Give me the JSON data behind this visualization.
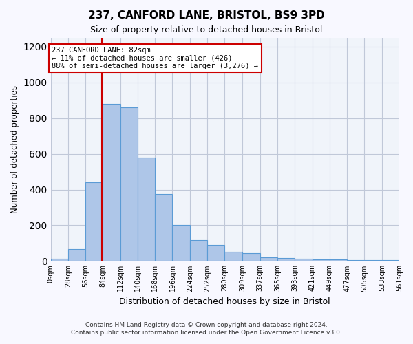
{
  "title1": "237, CANFORD LANE, BRISTOL, BS9 3PD",
  "title2": "Size of property relative to detached houses in Bristol",
  "xlabel": "Distribution of detached houses by size in Bristol",
  "ylabel": "Number of detached properties",
  "footer1": "Contains HM Land Registry data © Crown copyright and database right 2024.",
  "footer2": "Contains public sector information licensed under the Open Government Licence v3.0.",
  "bin_labels": [
    "0sqm",
    "28sqm",
    "56sqm",
    "84sqm",
    "112sqm",
    "140sqm",
    "168sqm",
    "196sqm",
    "224sqm",
    "252sqm",
    "280sqm",
    "309sqm",
    "337sqm",
    "365sqm",
    "393sqm",
    "421sqm",
    "449sqm",
    "477sqm",
    "505sqm",
    "533sqm",
    "561sqm"
  ],
  "bar_heights": [
    12,
    65,
    440,
    880,
    860,
    578,
    375,
    200,
    115,
    88,
    50,
    42,
    22,
    15,
    12,
    8,
    8,
    5,
    5,
    5,
    3
  ],
  "property_size": 82,
  "vline_x": 82,
  "annotation_text": "237 CANFORD LANE: 82sqm\n← 11% of detached houses are smaller (426)\n88% of semi-detached houses are larger (3,276) →",
  "bar_color": "#aec6e8",
  "bar_edge_color": "#5b9bd5",
  "vline_color": "#cc0000",
  "annotation_box_color": "#cc0000",
  "grid_color": "#c0c8d8",
  "bg_color": "#f0f4fa",
  "ylim": [
    0,
    1250
  ],
  "yticks": [
    0,
    200,
    400,
    600,
    800,
    1000,
    1200
  ],
  "bin_edges": [
    0,
    28,
    56,
    84,
    112,
    140,
    168,
    196,
    224,
    252,
    280,
    309,
    337,
    365,
    393,
    421,
    449,
    477,
    505,
    533,
    561
  ]
}
